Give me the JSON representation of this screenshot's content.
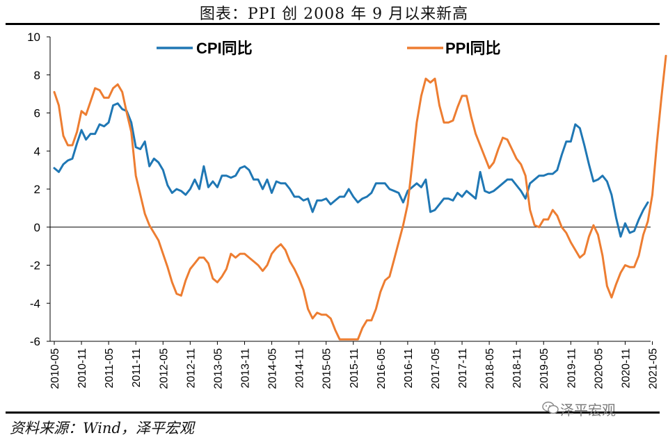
{
  "page": {
    "title": "图表：PPI 创 2008 年 9 月以来新高",
    "source": "资料来源：Wind，泽平宏观",
    "watermark": "泽平宏观"
  },
  "colors": {
    "cpi": "#1F77B4",
    "ppi": "#ED7D31",
    "zero_line": "#000000"
  },
  "chart_data": {
    "type": "line",
    "title": "",
    "xlabel": "",
    "ylabel": "",
    "ylim": [
      -6,
      10
    ],
    "yticks": [
      10,
      8,
      6,
      4,
      2,
      0,
      -2,
      -4,
      -6
    ],
    "grid": false,
    "legend_position": "top",
    "x_tick_labels": [
      "2010-05",
      "2010-11",
      "2011-05",
      "2011-11",
      "2012-05",
      "2012-11",
      "2013-05",
      "2013-11",
      "2014-05",
      "2014-11",
      "2015-05",
      "2015-11",
      "2016-05",
      "2016-11",
      "2017-05",
      "2017-11",
      "2018-05",
      "2018-11",
      "2019-05",
      "2019-11",
      "2020-05",
      "2020-11",
      "2021-05"
    ],
    "x_start": "2010-05",
    "x_end": "2021-05",
    "series": [
      {
        "name": "CPI同比",
        "color": "#1F77B4",
        "values": [
          3.1,
          2.9,
          3.3,
          3.5,
          3.6,
          4.4,
          5.1,
          4.6,
          4.9,
          4.9,
          5.4,
          5.3,
          5.5,
          6.4,
          6.5,
          6.2,
          6.1,
          5.5,
          4.2,
          4.1,
          4.5,
          3.2,
          3.6,
          3.4,
          3.0,
          2.2,
          1.8,
          2.0,
          1.9,
          1.7,
          2.0,
          2.5,
          2.0,
          3.2,
          2.1,
          2.4,
          2.1,
          2.7,
          2.7,
          2.6,
          2.7,
          3.1,
          3.2,
          3.0,
          2.5,
          2.5,
          2.0,
          2.5,
          1.8,
          2.4,
          2.3,
          2.3,
          2.0,
          1.6,
          1.6,
          1.4,
          1.5,
          0.8,
          1.4,
          1.4,
          1.5,
          1.2,
          1.4,
          1.6,
          1.6,
          2.0,
          1.6,
          1.3,
          1.5,
          1.6,
          1.8,
          2.3,
          2.3,
          2.3,
          2.0,
          1.9,
          1.8,
          1.3,
          1.9,
          2.1,
          2.3,
          2.1,
          2.5,
          0.8,
          0.9,
          1.2,
          1.5,
          1.5,
          1.4,
          1.8,
          1.6,
          1.9,
          1.7,
          1.5,
          2.9,
          1.9,
          1.8,
          1.9,
          2.1,
          2.3,
          2.5,
          2.5,
          2.2,
          1.9,
          1.5,
          2.3,
          2.5,
          2.7,
          2.7,
          2.8,
          2.8,
          3.0,
          3.8,
          4.5,
          4.5,
          5.4,
          5.2,
          4.3,
          3.3,
          2.4,
          2.5,
          2.7,
          2.4,
          1.7,
          0.5,
          -0.5,
          0.2,
          -0.3,
          -0.2,
          0.4,
          0.9,
          1.3
        ],
        "legend_label": "CPI同比"
      },
      {
        "name": "PPI同比",
        "color": "#ED7D31",
        "values": [
          7.1,
          6.4,
          4.8,
          4.3,
          4.3,
          5.0,
          6.1,
          5.9,
          6.6,
          7.3,
          7.2,
          6.8,
          6.8,
          7.3,
          7.5,
          7.1,
          6.0,
          5.0,
          2.7,
          1.7,
          0.7,
          0.1,
          -0.3,
          -0.7,
          -1.4,
          -2.1,
          -2.9,
          -3.5,
          -3.6,
          -2.8,
          -2.2,
          -1.9,
          -1.6,
          -1.6,
          -1.9,
          -2.7,
          -2.9,
          -2.6,
          -2.2,
          -1.4,
          -1.6,
          -1.4,
          -1.4,
          -1.6,
          -1.8,
          -2.0,
          -2.3,
          -2.0,
          -1.4,
          -1.1,
          -0.9,
          -1.2,
          -1.8,
          -2.2,
          -2.7,
          -3.3,
          -4.3,
          -4.8,
          -4.5,
          -4.6,
          -4.6,
          -4.8,
          -5.4,
          -5.9,
          -5.9,
          -5.9,
          -5.9,
          -5.9,
          -5.3,
          -4.9,
          -4.9,
          -4.3,
          -3.4,
          -2.8,
          -2.6,
          -1.7,
          -0.8,
          0.1,
          1.2,
          3.3,
          5.5,
          6.9,
          7.8,
          7.6,
          7.8,
          6.4,
          5.5,
          5.5,
          5.6,
          6.3,
          6.9,
          6.9,
          5.8,
          4.9,
          4.3,
          3.7,
          3.1,
          3.4,
          4.1,
          4.7,
          4.6,
          4.1,
          3.6,
          3.3,
          2.7,
          0.9,
          0.1,
          0.0,
          0.4,
          0.4,
          0.9,
          0.6,
          0.0,
          -0.3,
          -0.8,
          -1.2,
          -1.6,
          -1.4,
          -0.5,
          0.1,
          -0.4,
          -1.5,
          -3.1,
          -3.7,
          -3.0,
          -2.4,
          -2.0,
          -2.1,
          -2.1,
          -1.5,
          -0.4,
          0.3,
          1.7,
          4.4,
          6.8,
          9.0
        ]
      }
    ]
  }
}
